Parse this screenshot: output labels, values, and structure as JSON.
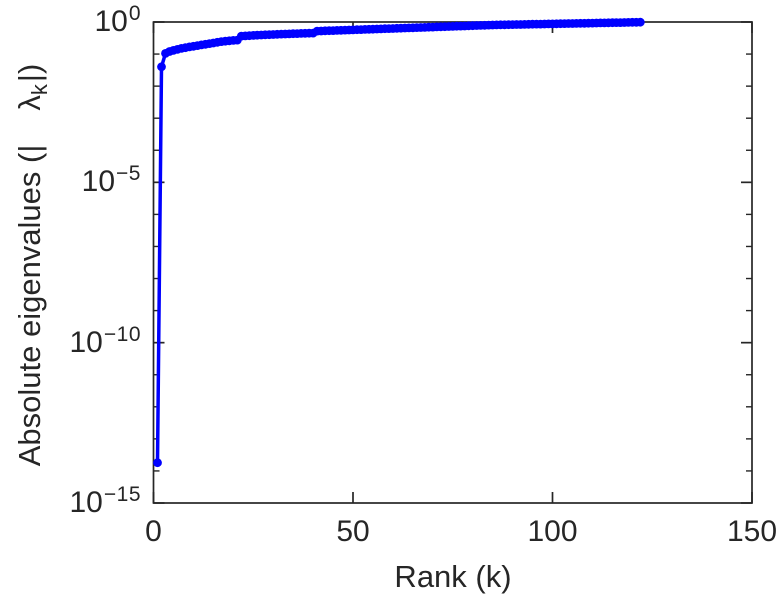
{
  "figure": {
    "background": "#ffffff",
    "axis_color": "#262626",
    "text_color": "#262626"
  },
  "chart_data": {
    "type": "line",
    "subtype": "semilogy-with-markers",
    "title": "",
    "xlabel": "Rank (k)",
    "ylabel": "Absolute eigenvalues (| λ_k |)",
    "ylabel_parts": {
      "prefix": "Absolute eigenvalues (|",
      "symbol": "λ",
      "sub": "k",
      "suffix": "|)"
    },
    "y_scale": "log",
    "xlim": [
      0,
      150
    ],
    "ylim_exponents": [
      -15,
      0
    ],
    "x_ticks": [
      0,
      50,
      100,
      150
    ],
    "y_tick_base": "10",
    "y_ticks": [
      {
        "exponent": 0,
        "label": "0"
      },
      {
        "exponent": -5,
        "label": "−5"
      },
      {
        "exponent": -10,
        "label": "−10"
      },
      {
        "exponent": -15,
        "label": "−15"
      }
    ],
    "y_minor_ticks_every_decade": true,
    "grid": false,
    "legend": null,
    "marker": "filled-circle",
    "series": [
      {
        "name": "absolute-eigenvalues",
        "color": "#0000ff",
        "k": [
          1,
          2,
          3,
          4,
          5,
          6,
          7,
          8,
          9,
          10,
          11,
          12,
          13,
          14,
          15,
          16,
          17,
          18,
          19,
          20,
          21,
          22,
          23,
          24,
          25,
          26,
          27,
          28,
          29,
          30,
          31,
          32,
          33,
          34,
          35,
          36,
          37,
          38,
          39,
          40,
          41,
          42,
          43,
          44,
          45,
          46,
          47,
          48,
          49,
          50,
          51,
          52,
          53,
          54,
          55,
          56,
          57,
          58,
          59,
          60,
          61,
          62,
          63,
          64,
          65,
          66,
          67,
          68,
          69,
          70,
          71,
          72,
          73,
          74,
          75,
          76,
          77,
          78,
          79,
          80,
          81,
          82,
          83,
          84,
          85,
          86,
          87,
          88,
          89,
          90,
          91,
          92,
          93,
          94,
          95,
          96,
          97,
          98,
          99,
          100,
          101,
          102,
          103,
          104,
          105,
          106,
          107,
          108,
          109,
          110,
          111,
          112,
          113,
          114,
          115,
          116,
          117,
          118,
          119,
          120,
          121,
          122
        ],
        "values": [
          1.8e-14,
          0.04,
          0.105,
          0.12,
          0.13,
          0.14,
          0.15,
          0.158,
          0.167,
          0.175,
          0.184,
          0.193,
          0.202,
          0.212,
          0.222,
          0.233,
          0.244,
          0.252,
          0.26,
          0.266,
          0.272,
          0.36,
          0.368,
          0.375,
          0.381,
          0.387,
          0.393,
          0.398,
          0.403,
          0.408,
          0.413,
          0.418,
          0.423,
          0.427,
          0.431,
          0.435,
          0.44,
          0.444,
          0.448,
          0.452,
          0.52,
          0.525,
          0.53,
          0.536,
          0.541,
          0.547,
          0.552,
          0.558,
          0.563,
          0.569,
          0.575,
          0.58,
          0.586,
          0.592,
          0.598,
          0.604,
          0.61,
          0.616,
          0.622,
          0.629,
          0.635,
          0.641,
          0.648,
          0.654,
          0.661,
          0.667,
          0.674,
          0.681,
          0.688,
          0.694,
          0.701,
          0.708,
          0.716,
          0.723,
          0.73,
          0.737,
          0.745,
          0.752,
          0.76,
          0.768,
          0.775,
          0.783,
          0.791,
          0.799,
          0.807,
          0.811,
          0.816,
          0.82,
          0.825,
          0.829,
          0.834,
          0.838,
          0.843,
          0.847,
          0.852,
          0.857,
          0.861,
          0.866,
          0.871,
          0.875,
          0.88,
          0.885,
          0.89,
          0.895,
          0.9,
          0.904,
          0.909,
          0.914,
          0.919,
          0.924,
          0.929,
          0.935,
          0.94,
          0.945,
          0.95,
          0.955,
          0.96,
          0.966,
          0.971,
          0.976,
          0.982,
          0.987
        ]
      }
    ]
  }
}
